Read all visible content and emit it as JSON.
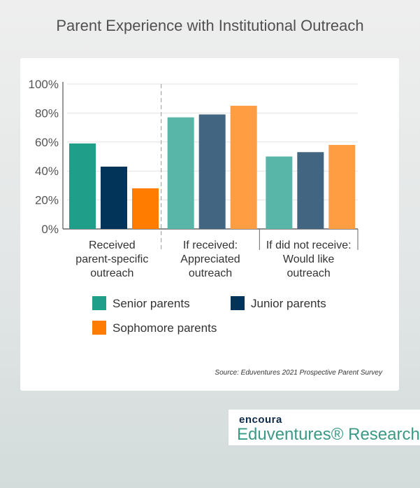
{
  "title": "Parent Experience with Institutional Outreach",
  "source": "Source: Eduventures 2021 Prospective Parent Survey",
  "logo": {
    "brand": "encoura",
    "name": "Eduventures® Research"
  },
  "chart_data": {
    "type": "bar",
    "title": "Parent Experience with Institutional Outreach",
    "categories": [
      [
        "Received",
        "parent-specific",
        "outreach"
      ],
      [
        "If received:",
        "Appreciated",
        "outreach"
      ],
      [
        "If did not receive:",
        "Would like",
        "outreach"
      ]
    ],
    "series": [
      {
        "name": "Senior parents",
        "values": [
          59,
          77,
          50
        ]
      },
      {
        "name": "Junior parents",
        "values": [
          43,
          79,
          53
        ]
      },
      {
        "name": "Sophomore parents",
        "values": [
          28,
          85,
          58
        ]
      }
    ],
    "colors": [
      [
        "#1f9e8a",
        "#02345a",
        "#ff7c00"
      ],
      [
        "#57b6a8",
        "#426582",
        "#ff9d42"
      ],
      [
        "#57b6a8",
        "#426582",
        "#ff9d42"
      ]
    ],
    "ylim": [
      0,
      100
    ],
    "yticks": [
      "0%",
      "20%",
      "40%",
      "60%",
      "80%",
      "100%"
    ],
    "grid": true,
    "legend_position": "bottom"
  }
}
